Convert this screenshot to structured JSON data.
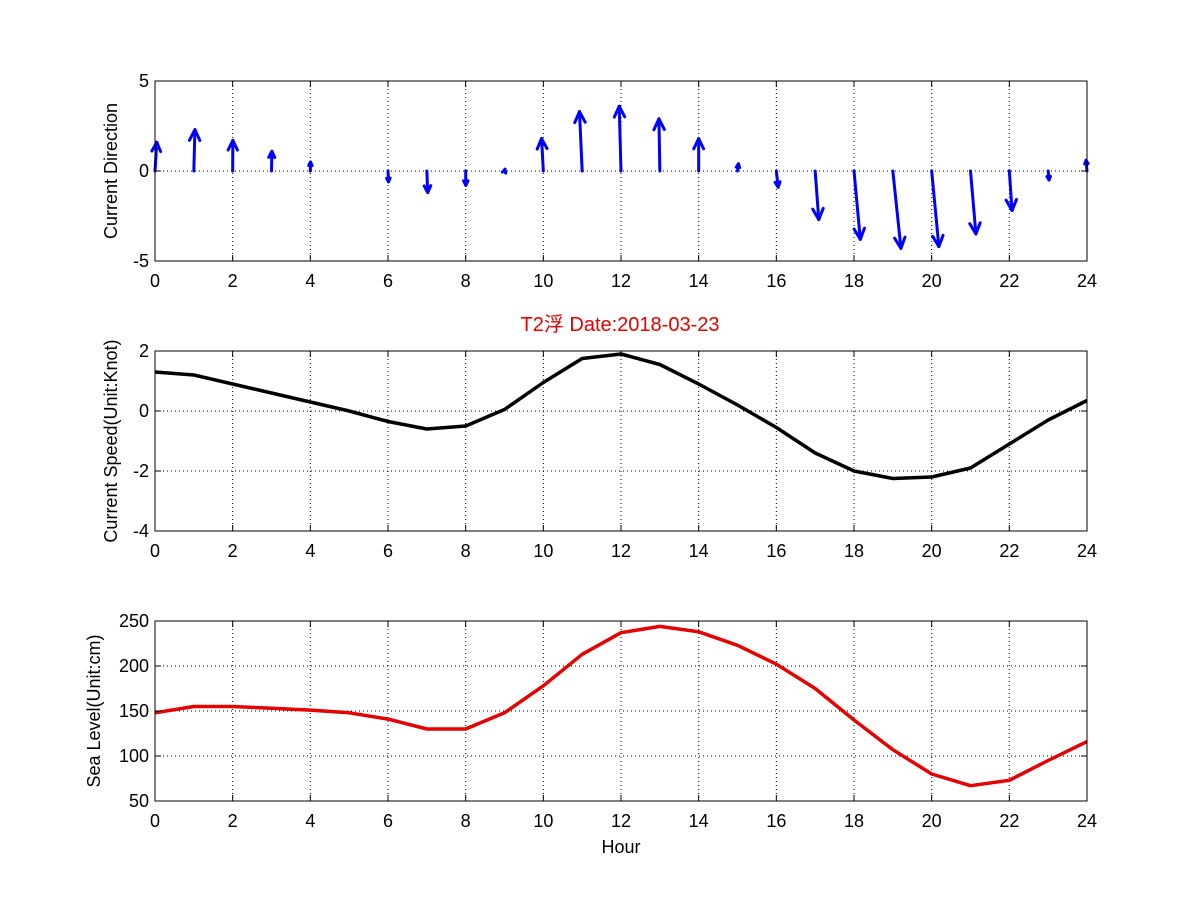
{
  "title": "T2浮   Date:2018-03-23",
  "colors": {
    "arrows": "#0000ff",
    "speed": "#000000",
    "sea_level": "#e60000",
    "title": "#e60000"
  },
  "chart_data": [
    {
      "type": "quiver",
      "ylabel": "Current Direction",
      "xlabel": "",
      "xlim": [
        0,
        24
      ],
      "ylim": [
        -5,
        5
      ],
      "xticks": [
        "0",
        "2",
        "4",
        "6",
        "8",
        "10",
        "12",
        "14",
        "16",
        "18",
        "20",
        "22",
        "24"
      ],
      "yticks": [
        "-5",
        "0",
        "5"
      ],
      "grid": true,
      "x": [
        0,
        1,
        2,
        3,
        4,
        5,
        6,
        7,
        8,
        9,
        10,
        11,
        12,
        13,
        14,
        15,
        16,
        17,
        18,
        19,
        20,
        21,
        22,
        23,
        24
      ],
      "u": [
        0.1,
        0.06,
        0.01,
        0.02,
        0.01,
        0.01,
        0.03,
        0.05,
        0.01,
        0.03,
        -0.1,
        -0.15,
        -0.1,
        -0.05,
        0.0,
        0.05,
        0.1,
        0.2,
        0.35,
        0.45,
        0.4,
        0.3,
        0.15,
        0.05,
        -0.05
      ],
      "v": [
        1.6,
        2.3,
        1.7,
        1.1,
        0.5,
        0.0,
        -0.6,
        -1.2,
        -0.8,
        0.1,
        1.8,
        3.3,
        3.6,
        2.9,
        1.8,
        0.4,
        -0.9,
        -2.7,
        -3.8,
        -4.3,
        -4.2,
        -3.5,
        -2.2,
        -0.5,
        0.6
      ]
    },
    {
      "type": "line",
      "title": "T2浮   Date:2018-03-23",
      "ylabel": "Current Speed(Unit:Knot)",
      "xlabel": "",
      "xlim": [
        0,
        24
      ],
      "ylim": [
        -4,
        2
      ],
      "xticks": [
        "0",
        "2",
        "4",
        "6",
        "8",
        "10",
        "12",
        "14",
        "16",
        "18",
        "20",
        "22",
        "24"
      ],
      "yticks": [
        "-4",
        "-2",
        "0",
        "2"
      ],
      "grid": true,
      "x": [
        0,
        1,
        2,
        3,
        4,
        5,
        6,
        7,
        8,
        9,
        10,
        11,
        12,
        13,
        14,
        15,
        16,
        17,
        18,
        19,
        20,
        21,
        22,
        23,
        24
      ],
      "series": [
        {
          "values": [
            1.3,
            1.2,
            0.9,
            0.6,
            0.3,
            0.0,
            -0.35,
            -0.6,
            -0.5,
            0.05,
            0.95,
            1.75,
            1.9,
            1.55,
            0.9,
            0.2,
            -0.55,
            -1.4,
            -2.0,
            -2.25,
            -2.2,
            -1.9,
            -1.1,
            -0.3,
            0.35
          ]
        }
      ]
    },
    {
      "type": "line",
      "ylabel": "Sea Level(Unit:cm)",
      "xlabel": "Hour",
      "xlim": [
        0,
        24
      ],
      "ylim": [
        50,
        250
      ],
      "xticks": [
        "0",
        "2",
        "4",
        "6",
        "8",
        "10",
        "12",
        "14",
        "16",
        "18",
        "20",
        "22",
        "24"
      ],
      "yticks": [
        "50",
        "100",
        "150",
        "200",
        "250"
      ],
      "grid": true,
      "x": [
        0,
        1,
        2,
        3,
        4,
        5,
        6,
        7,
        8,
        9,
        10,
        11,
        12,
        13,
        14,
        15,
        16,
        17,
        18,
        19,
        20,
        21,
        22,
        23,
        24
      ],
      "series": [
        {
          "values": [
            148,
            155,
            155,
            153,
            151,
            148,
            141,
            130,
            130,
            148,
            178,
            213,
            237,
            244,
            238,
            223,
            202,
            175,
            140,
            107,
            80,
            67,
            73,
            95,
            116
          ]
        }
      ]
    }
  ]
}
